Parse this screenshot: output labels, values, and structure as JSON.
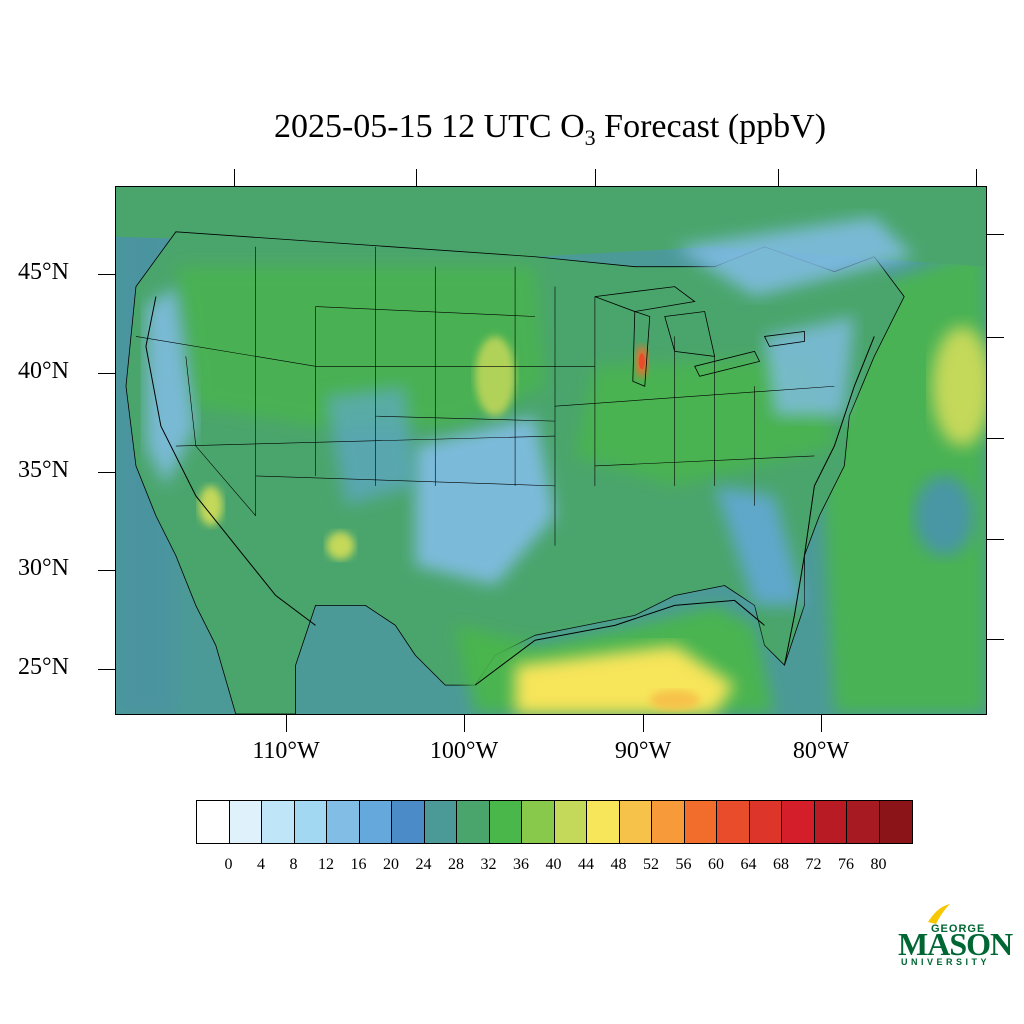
{
  "title": {
    "prefix": "2025-05-15 12 UTC O",
    "subscript": "3",
    "suffix": " Forecast (ppbV)"
  },
  "axes": {
    "lat_labels": [
      "45°N",
      "40°N",
      "35°N",
      "30°N",
      "25°N"
    ],
    "lon_labels": [
      "110°W",
      "100°W",
      "90°W",
      "80°W"
    ]
  },
  "colorbar": {
    "labels": [
      "0",
      "4",
      "8",
      "12",
      "16",
      "20",
      "24",
      "28",
      "32",
      "36",
      "40",
      "44",
      "48",
      "52",
      "56",
      "60",
      "64",
      "68",
      "72",
      "76",
      "80"
    ],
    "colors": [
      "#ffffff",
      "#dff1fb",
      "#bfe6f8",
      "#a3d8f3",
      "#82bde6",
      "#64a8dc",
      "#4a8bc8",
      "#4c9a98",
      "#4aa56c",
      "#4ab74a",
      "#88c84a",
      "#c4d85a",
      "#f7e55a",
      "#f7c24a",
      "#f79a3a",
      "#f26d2b",
      "#e84c2a",
      "#de352a",
      "#d41f2a",
      "#b81b24",
      "#a81a22",
      "#8b1419"
    ]
  },
  "logo": {
    "george": "GEORGE",
    "mason": "MASON",
    "university": "UNIVERSITY",
    "brand_color": "#006633",
    "accent_color": "#f7c700"
  },
  "map": {
    "ocean_color": "#4c9a98",
    "land_base_color": "#4aa56c",
    "hotspot_color": "#f26d2b",
    "gulf_high_color": "#f7e55a"
  }
}
